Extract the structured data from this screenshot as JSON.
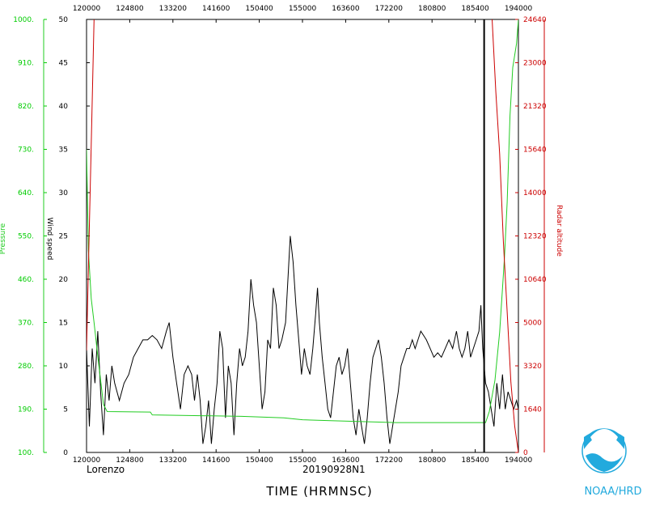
{
  "chart_data": {
    "type": "line",
    "storm_name": "Lorenzo",
    "flight_id": "20190928N1",
    "xlabel": "TIME (HRMNSC)",
    "agency": "NOAA/HRD",
    "left_axis_1": {
      "label": "Pressure",
      "ticks": [
        "100.",
        "190.",
        "280.",
        "370.",
        "460.",
        "550.",
        "640.",
        "730.",
        "820.",
        "910.",
        "1000."
      ],
      "range": [
        100,
        1000
      ],
      "color": "#00cc00"
    },
    "left_axis_2": {
      "label": "Wind speed",
      "ticks": [
        "0",
        "5",
        "10",
        "15",
        "20",
        "25",
        "30",
        "35",
        "40",
        "45",
        "50"
      ],
      "range": [
        0,
        50
      ],
      "color": "#000000"
    },
    "right_axis": {
      "label": "Radar altitude",
      "ticks": [
        "0",
        "1640",
        "3320",
        "5000",
        "10640",
        "12320",
        "14000",
        "15640",
        "21320",
        "23000",
        "24640"
      ],
      "color": "#cc0000"
    },
    "x_ticks": [
      "120000",
      "124800",
      "133200",
      "141600",
      "150400",
      "155000",
      "163600",
      "172200",
      "180800",
      "185400",
      "194000"
    ],
    "x_range": [
      "12:00:00",
      "19:40:00"
    ],
    "vertical_marker_time": "19:03:30",
    "series": [
      {
        "name": "Wind speed",
        "color": "#000000",
        "points": [
          [
            "12:00",
            12
          ],
          [
            "12:03",
            3
          ],
          [
            "12:06",
            12
          ],
          [
            "12:09",
            8
          ],
          [
            "12:12",
            14
          ],
          [
            "12:15",
            7
          ],
          [
            "12:18",
            2
          ],
          [
            "12:21",
            9
          ],
          [
            "12:24",
            6
          ],
          [
            "12:27",
            10
          ],
          [
            "12:30",
            8
          ],
          [
            "12:35",
            6
          ],
          [
            "12:40",
            8
          ],
          [
            "12:45",
            9
          ],
          [
            "12:50",
            11
          ],
          [
            "12:55",
            12
          ],
          [
            "13:00",
            13
          ],
          [
            "13:05",
            13
          ],
          [
            "13:10",
            13.5
          ],
          [
            "13:15",
            13
          ],
          [
            "13:20",
            12
          ],
          [
            "13:25",
            14
          ],
          [
            "13:28",
            15
          ],
          [
            "13:32",
            11
          ],
          [
            "13:36",
            8
          ],
          [
            "13:40",
            5
          ],
          [
            "13:44",
            9
          ],
          [
            "13:48",
            10
          ],
          [
            "13:52",
            9
          ],
          [
            "13:55",
            6
          ],
          [
            "13:58",
            9
          ],
          [
            "14:01",
            6
          ],
          [
            "14:04",
            1
          ],
          [
            "14:07",
            3
          ],
          [
            "14:10",
            6
          ],
          [
            "14:13",
            1
          ],
          [
            "14:16",
            5
          ],
          [
            "14:19",
            8
          ],
          [
            "14:22",
            14
          ],
          [
            "14:25",
            12
          ],
          [
            "14:28",
            4
          ],
          [
            "14:31",
            10
          ],
          [
            "14:34",
            8
          ],
          [
            "14:37",
            2
          ],
          [
            "14:40",
            8
          ],
          [
            "14:43",
            12
          ],
          [
            "14:46",
            10
          ],
          [
            "14:49",
            11
          ],
          [
            "14:52",
            14
          ],
          [
            "14:55",
            20
          ],
          [
            "14:58",
            17
          ],
          [
            "15:01",
            15
          ],
          [
            "15:04",
            10
          ],
          [
            "15:07",
            5
          ],
          [
            "15:10",
            7
          ],
          [
            "15:13",
            13
          ],
          [
            "15:16",
            12
          ],
          [
            "15:19",
            19
          ],
          [
            "15:22",
            17
          ],
          [
            "15:25",
            12
          ],
          [
            "15:28",
            13
          ],
          [
            "15:32",
            15
          ],
          [
            "15:35",
            21
          ],
          [
            "15:37",
            25
          ],
          [
            "15:40",
            22
          ],
          [
            "15:43",
            17
          ],
          [
            "15:46",
            13
          ],
          [
            "15:49",
            9
          ],
          [
            "15:52",
            12
          ],
          [
            "15:55",
            10
          ],
          [
            "15:58",
            9
          ],
          [
            "16:01",
            12
          ],
          [
            "16:04",
            16
          ],
          [
            "16:06",
            19
          ],
          [
            "16:08",
            15
          ],
          [
            "16:11",
            11
          ],
          [
            "16:14",
            8
          ],
          [
            "16:17",
            5
          ],
          [
            "16:20",
            4
          ],
          [
            "16:23",
            7
          ],
          [
            "16:26",
            10
          ],
          [
            "16:29",
            11
          ],
          [
            "16:32",
            9
          ],
          [
            "16:35",
            10
          ],
          [
            "16:38",
            12
          ],
          [
            "16:41",
            8
          ],
          [
            "16:44",
            4
          ],
          [
            "16:47",
            2
          ],
          [
            "16:50",
            5
          ],
          [
            "16:53",
            3
          ],
          [
            "16:56",
            1
          ],
          [
            "16:59",
            4
          ],
          [
            "17:02",
            8
          ],
          [
            "17:05",
            11
          ],
          [
            "17:08",
            12
          ],
          [
            "17:11",
            13
          ],
          [
            "17:14",
            11
          ],
          [
            "17:17",
            8
          ],
          [
            "17:20",
            4
          ],
          [
            "17:23",
            1
          ],
          [
            "17:26",
            3
          ],
          [
            "17:29",
            5
          ],
          [
            "17:32",
            7
          ],
          [
            "17:35",
            10
          ],
          [
            "17:38",
            11
          ],
          [
            "17:41",
            12
          ],
          [
            "17:44",
            12
          ],
          [
            "17:47",
            13
          ],
          [
            "17:50",
            12
          ],
          [
            "17:53",
            13
          ],
          [
            "17:56",
            14
          ],
          [
            "17:59",
            13.5
          ],
          [
            "18:02",
            13
          ],
          [
            "18:06",
            12
          ],
          [
            "18:10",
            11
          ],
          [
            "18:14",
            11.5
          ],
          [
            "18:18",
            11
          ],
          [
            "18:22",
            12
          ],
          [
            "18:26",
            13
          ],
          [
            "18:30",
            12
          ],
          [
            "18:34",
            14
          ],
          [
            "18:37",
            12
          ],
          [
            "18:40",
            11
          ],
          [
            "18:43",
            12
          ],
          [
            "18:46",
            14
          ],
          [
            "18:49",
            11
          ],
          [
            "18:52",
            12
          ],
          [
            "18:55",
            13
          ],
          [
            "18:58",
            14
          ],
          [
            "19:00",
            17
          ],
          [
            "19:02",
            12
          ],
          [
            "19:05",
            8
          ],
          [
            "19:08",
            7
          ],
          [
            "19:11",
            5
          ],
          [
            "19:14",
            3
          ],
          [
            "19:17",
            8
          ],
          [
            "19:20",
            5
          ],
          [
            "19:23",
            9
          ],
          [
            "19:26",
            5
          ],
          [
            "19:29",
            7
          ],
          [
            "19:32",
            6
          ],
          [
            "19:35",
            5
          ],
          [
            "19:38",
            6
          ],
          [
            "19:40",
            5
          ]
        ]
      },
      {
        "name": "Pressure",
        "color": "#22cc22",
        "points": [
          [
            "12:00",
            730
          ],
          [
            "12:02",
            520
          ],
          [
            "12:05",
            420
          ],
          [
            "12:08",
            370
          ],
          [
            "12:12",
            300
          ],
          [
            "12:18",
            200
          ],
          [
            "12:22",
            185
          ],
          [
            "13:08",
            184
          ],
          [
            "13:10",
            178
          ],
          [
            "14:45",
            175
          ],
          [
            "15:30",
            172
          ],
          [
            "15:50",
            168
          ],
          [
            "16:20",
            166
          ],
          [
            "17:30",
            162
          ],
          [
            "18:50",
            162
          ],
          [
            "19:05",
            162
          ],
          [
            "19:09",
            185
          ],
          [
            "19:15",
            250
          ],
          [
            "19:20",
            350
          ],
          [
            "19:25",
            500
          ],
          [
            "19:28",
            620
          ],
          [
            "19:31",
            800
          ],
          [
            "19:34",
            900
          ],
          [
            "19:38",
            950
          ],
          [
            "19:40",
            1000
          ]
        ]
      },
      {
        "name": "Radar altitude",
        "color": "#cc0000",
        "points": [
          [
            "12:00",
            5800
          ],
          [
            "12:02",
            10500
          ],
          [
            "12:05",
            17500
          ],
          [
            "12:08",
            24640
          ],
          [
            "12:10",
            26000
          ],
          [
            "19:10",
            26000
          ],
          [
            "19:12",
            24640
          ],
          [
            "19:16",
            20500
          ],
          [
            "19:20",
            17000
          ],
          [
            "19:24",
            12000
          ],
          [
            "19:28",
            8000
          ],
          [
            "19:32",
            4000
          ],
          [
            "19:36",
            1500
          ],
          [
            "19:40",
            0
          ]
        ]
      }
    ]
  }
}
